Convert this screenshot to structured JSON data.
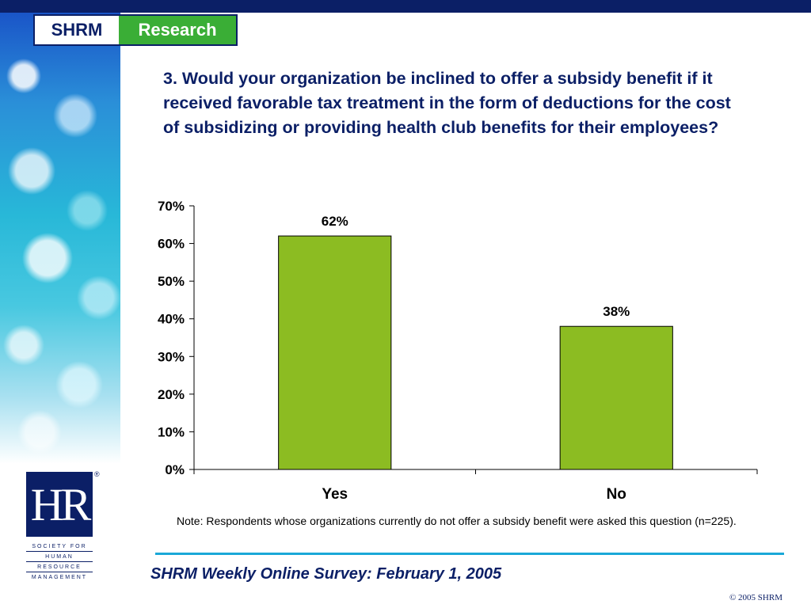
{
  "header": {
    "logo_left": "SHRM",
    "logo_right": "Research"
  },
  "question": "3. Would your organization be inclined to offer a subsidy benefit if it received favorable tax treatment in the form of deductions for the cost of subsidizing or providing health club benefits for their employees?",
  "chart_data": {
    "type": "bar",
    "categories": [
      "Yes",
      "No"
    ],
    "values": [
      62,
      38
    ],
    "data_labels": [
      "62%",
      "38%"
    ],
    "yticks": [
      "0%",
      "10%",
      "20%",
      "30%",
      "40%",
      "50%",
      "60%",
      "70%"
    ],
    "ylim": [
      0,
      70
    ],
    "grid": false,
    "legend": "none",
    "bar_color": "#8cbc22"
  },
  "note": "Note: Respondents whose organizations currently do not offer a subsidy benefit were asked this question (n=225).",
  "footer": {
    "survey_title": "SHRM Weekly Online Survey: February 1, 2005",
    "copyright": "© 2005 SHRM",
    "hr_logo_letters": "HR",
    "hr_logo_words": [
      "SOCIETY FOR",
      "HUMAN",
      "RESOURCE",
      "MANAGEMENT"
    ],
    "reg_mark": "®"
  },
  "colors": {
    "navy": "#0b1f66",
    "green": "#3aae36",
    "accent_rule": "#1aa8d8"
  }
}
